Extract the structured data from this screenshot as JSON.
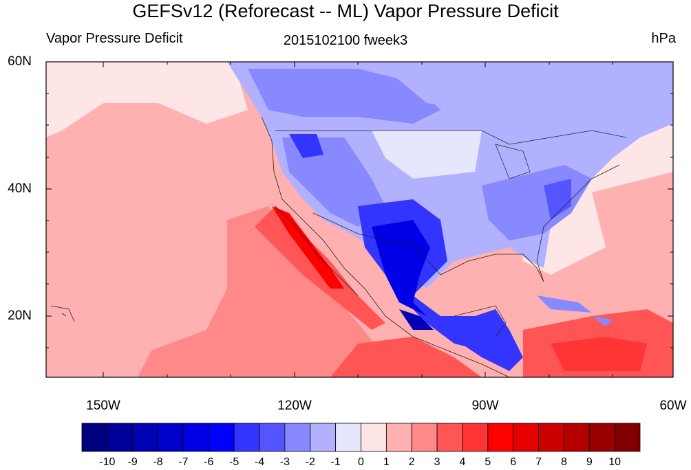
{
  "title": "GEFSv12 (Reforecast -- ML) Vapor Pressure Deficit",
  "subtitle_left": "Vapor Pressure Deficit",
  "subtitle_center": "2015102100 fweek3",
  "subtitle_right": "hPa",
  "lat_labels": [
    "60N",
    "40N",
    "20N"
  ],
  "lon_labels": [
    "150W",
    "120W",
    "90W",
    "60W"
  ],
  "colorbar": {
    "colors": [
      "#000080",
      "#00009a",
      "#0000b4",
      "#0000cd",
      "#0000e6",
      "#0000ff",
      "#3434ff",
      "#5555ff",
      "#8888ff",
      "#b1b1ff",
      "#e6e6ff",
      "#ffe6e6",
      "#ffb1b1",
      "#ff8888",
      "#ff5555",
      "#ff3434",
      "#ff0000",
      "#e60000",
      "#cd0000",
      "#b40000",
      "#9a0000",
      "#800000"
    ],
    "labels": [
      "-10",
      "-9",
      "-8",
      "-7",
      "-6",
      "-5",
      "-4",
      "-3",
      "-2",
      "-1",
      "0",
      "1",
      "2",
      "3",
      "4",
      "5",
      "6",
      "7",
      "8",
      "9",
      "10"
    ]
  }
}
